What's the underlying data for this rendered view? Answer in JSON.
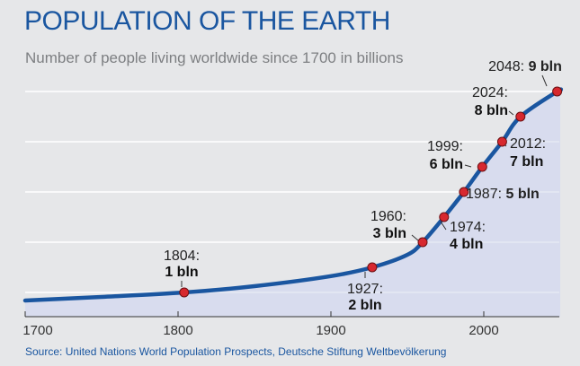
{
  "header": {
    "title": "POPULATION OF THE EARTH",
    "subtitle": "Number of people living worldwide since 1700 in billions"
  },
  "footer": {
    "source": "Source: United Nations World Population Prospects, Deutsche Stiftung Weltbevölkerung"
  },
  "colors": {
    "line": "#1a56a0",
    "area": "#d8dcee",
    "marker": "#d7282f",
    "grid": "#ffffff",
    "axis": "#333333"
  },
  "chart_data": {
    "type": "area",
    "title": "POPULATION OF THE EARTH",
    "subtitle": "Number of people living worldwide since 1700 in billions",
    "xlabel": "",
    "ylabel": "",
    "xlim": [
      1700,
      2050
    ],
    "ylim": [
      0,
      10
    ],
    "xticks": [
      "1700",
      "1800",
      "1900",
      "2000"
    ],
    "grid": true,
    "series": [
      {
        "values_x": [
          1700,
          1750,
          1804,
          1850,
          1900,
          1927,
          1950,
          1960,
          1974,
          1987,
          1999,
          2012,
          2024,
          2048,
          2050
        ],
        "values_y": [
          0.6,
          0.78,
          1,
          1.25,
          1.65,
          2,
          2.5,
          3,
          4,
          5,
          6,
          7,
          8,
          9,
          9.05
        ]
      }
    ],
    "milestones": [
      {
        "year": 1804,
        "value": 1,
        "label_year": "1804:",
        "label_value": "1 bln"
      },
      {
        "year": 1927,
        "value": 2,
        "label_year": "1927:",
        "label_value": "2 bln"
      },
      {
        "year": 1960,
        "value": 3,
        "label_year": "1960:",
        "label_value": "3 bln"
      },
      {
        "year": 1974,
        "value": 4,
        "label_year": "1974:",
        "label_value": "4 bln"
      },
      {
        "year": 1987,
        "value": 5,
        "label_year": "1987:",
        "label_value": "5 bln"
      },
      {
        "year": 1999,
        "value": 6,
        "label_year": "1999:",
        "label_value": "6 bln"
      },
      {
        "year": 2012,
        "value": 7,
        "label_year": "2012:",
        "label_value": "7 bln"
      },
      {
        "year": 2024,
        "value": 8,
        "label_year": "2024:",
        "label_value": "8 bln"
      },
      {
        "year": 2048,
        "value": 9,
        "label_year": "2048:",
        "label_value": "9 bln"
      }
    ]
  }
}
